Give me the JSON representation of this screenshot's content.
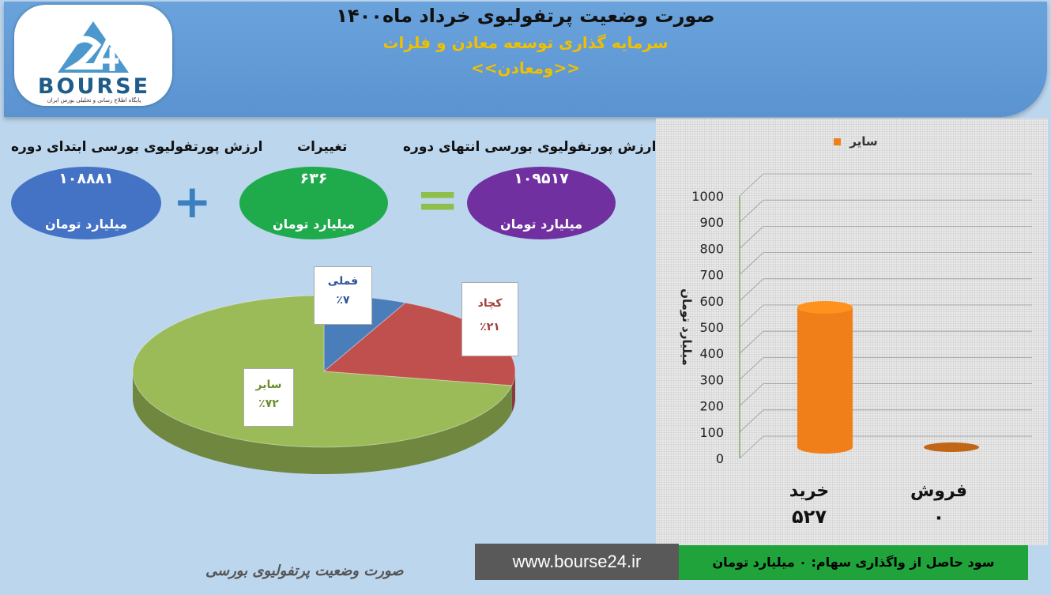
{
  "header": {
    "title": "صورت وضعیت پرتفولیوی خرداد ماه۱۴۰۰",
    "company": "سرمایه گذاری توسعه معادن و فلزات",
    "symbol": "<<ومعادن>>"
  },
  "logo": {
    "word": "BOURSE",
    "number": "24",
    "tagline": "پایگاه اطلاع رسانی و تحلیلی بورس ایران"
  },
  "summary": {
    "start": {
      "label": "ارزش پورتفولیوی بورسی ابتدای دوره",
      "value": "۱۰۸۸۸۱",
      "unit": "میلیارد تومان",
      "color": "#4472c4"
    },
    "change": {
      "label": "تغییرات",
      "value": "۶۳۶",
      "unit": "میلیارد تومان",
      "color": "#1faa4c"
    },
    "end": {
      "label": "ارزش پورتفولیوی بورسی انتهای دوره",
      "value": "۱۰۹۵۱۷",
      "unit": "میلیارد تومان",
      "color": "#7030a0"
    },
    "plus": "+",
    "equals": "="
  },
  "chart_data": [
    {
      "type": "pie",
      "title": "",
      "slices": [
        {
          "name": "فملی",
          "value": 7,
          "label": "٪۷",
          "color": "#4a7ebb"
        },
        {
          "name": "کچاد",
          "value": 21,
          "label": "٪۲۱",
          "color": "#c0504d"
        },
        {
          "name": "سایر",
          "value": 72,
          "label": "٪۷۲",
          "color": "#9bbb59"
        }
      ]
    },
    {
      "type": "bar",
      "title": "",
      "categories": [
        "خرید",
        "فروش"
      ],
      "series": [
        {
          "name": "سایر",
          "values": [
            527,
            0
          ],
          "color": "#f07f1a"
        }
      ],
      "value_labels": [
        "۵۲۷",
        "۰"
      ],
      "ylabel": "میلیارد تومان",
      "ylim": [
        0,
        1000
      ],
      "yticks": [
        0,
        100,
        200,
        300,
        400,
        500,
        600,
        700,
        800,
        900,
        1000
      ],
      "legend": "top"
    }
  ],
  "footer": {
    "note": "صورت وضعیت پرتفولیوی بورسی",
    "url": "www.bourse24.ir",
    "profit": "سود حاصل از واگذاری سهام: ۰ میلیارد تومان"
  }
}
